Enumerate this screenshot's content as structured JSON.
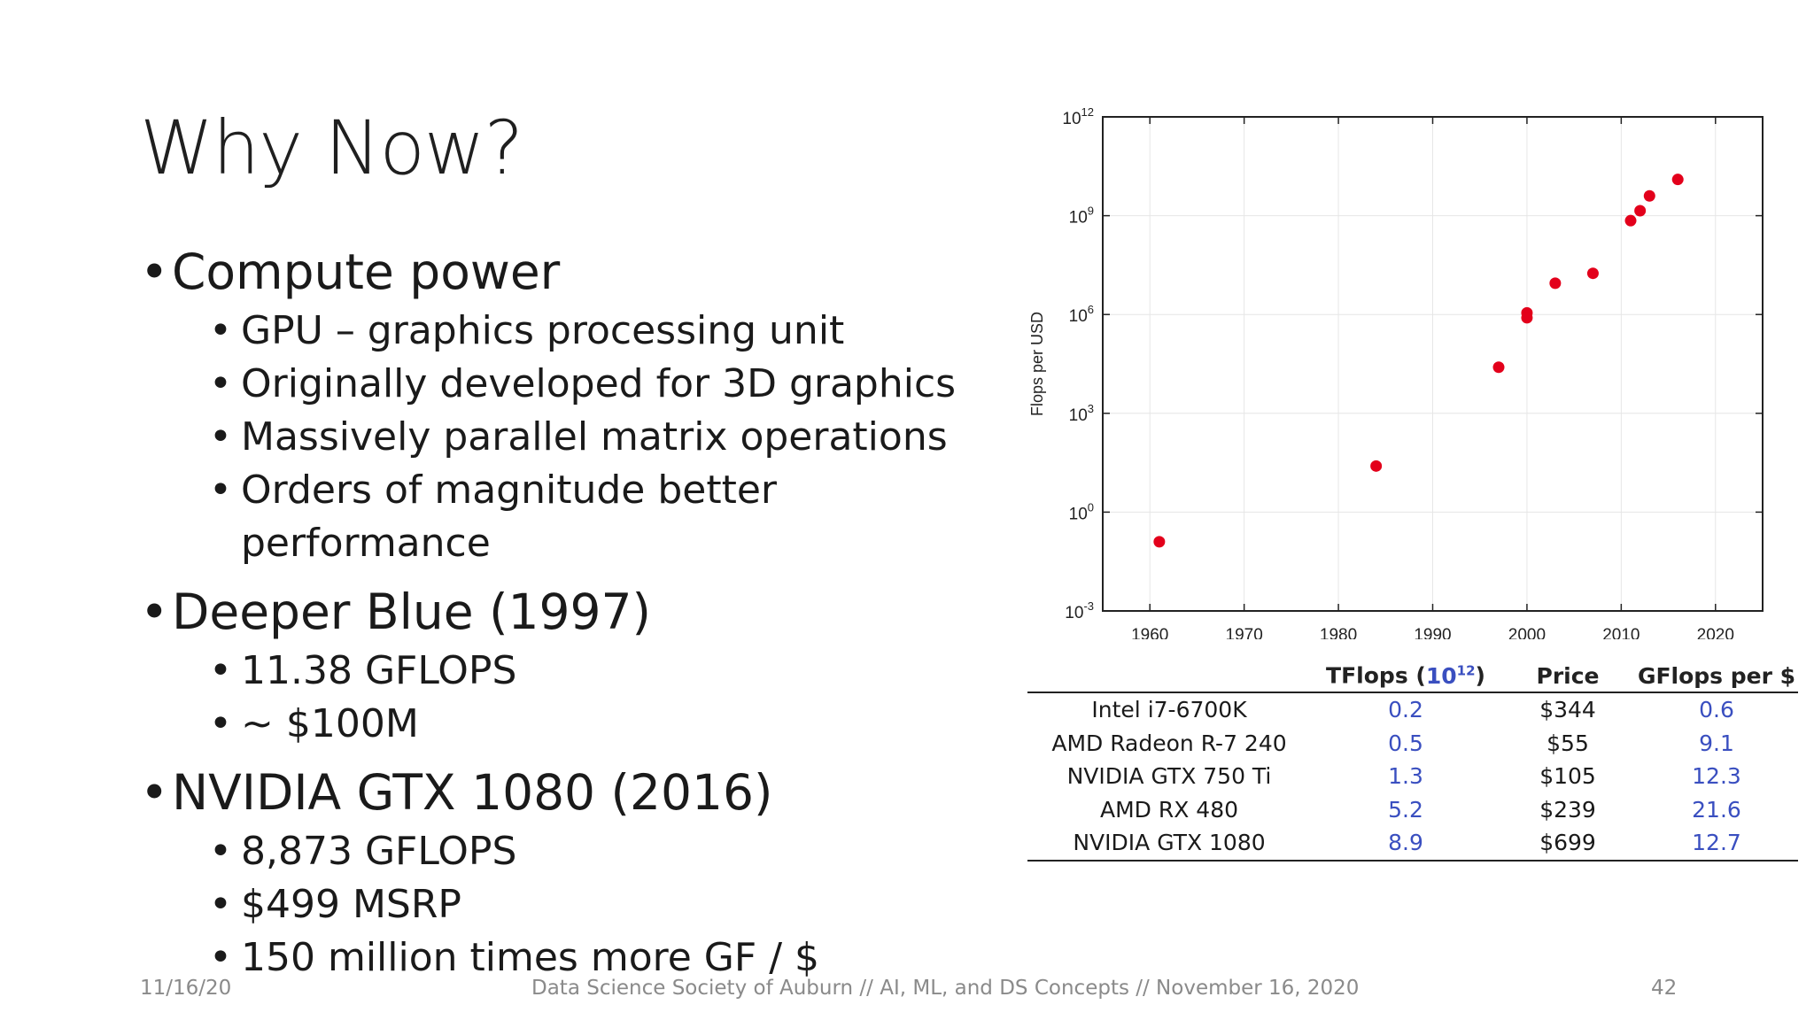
{
  "slide": {
    "title": "Why Now?",
    "bullets": [
      {
        "text": "Compute power",
        "sub": [
          "GPU – graphics processing unit",
          "Originally developed for 3D graphics",
          "Massively parallel matrix operations",
          "Orders of magnitude better performance"
        ]
      },
      {
        "text": "Deeper Blue (1997)",
        "sub": [
          "11.38 GFLOPS",
          "~ $100M"
        ]
      },
      {
        "text": "NVIDIA GTX 1080 (2016)",
        "sub": [
          "8,873 GFLOPS",
          "$499 MSRP",
          "150 million times more GF / $"
        ]
      }
    ],
    "bullet_glyph": "•"
  },
  "footer": {
    "date": "11/16/20",
    "center": "Data Science Society of Auburn // AI, ML, and DS Concepts // November 16, 2020",
    "page": "42"
  },
  "chart_data": {
    "type": "scatter",
    "ylabel": "Flops per USD",
    "xlabel": "",
    "title": "",
    "xlim": [
      1955,
      2025
    ],
    "ylog": true,
    "ylim_exp": [
      -3,
      12
    ],
    "xticks": [
      "1960",
      "1970",
      "1980",
      "1990",
      "2000",
      "2010",
      "2020"
    ],
    "yticks": [
      {
        "base": "10",
        "exp": "12",
        "value": 12
      },
      {
        "base": "10",
        "exp": "9",
        "value": 9
      },
      {
        "base": "10",
        "exp": "6",
        "value": 6
      },
      {
        "base": "10",
        "exp": "3",
        "value": 3
      },
      {
        "base": "10",
        "exp": "0",
        "value": 0
      },
      {
        "base": "10",
        "exp": "-3",
        "value": -3
      }
    ],
    "grid": true,
    "marker_color": "#e3001b",
    "points_log10": [
      {
        "x": 1961,
        "y": -0.9
      },
      {
        "x": 1984,
        "y": 1.4
      },
      {
        "x": 1997,
        "y": 4.4
      },
      {
        "x": 2000,
        "y": 6.05
      },
      {
        "x": 2000,
        "y": 5.9
      },
      {
        "x": 2003,
        "y": 6.95
      },
      {
        "x": 2007,
        "y": 7.25
      },
      {
        "x": 2011,
        "y": 8.85
      },
      {
        "x": 2012,
        "y": 9.15
      },
      {
        "x": 2013,
        "y": 9.6
      },
      {
        "x": 2016,
        "y": 10.1
      }
    ]
  },
  "table": {
    "headers": {
      "name": "",
      "tflops_label": "TFlops",
      "tflops_unit_base": "10",
      "tflops_unit_exp": "12",
      "price": "Price",
      "gflops_per_dollar": "GFlops per $"
    },
    "rows": [
      {
        "name": "Intel i7-6700K",
        "tflops": "0.2",
        "price": "$344",
        "gpd": "0.6"
      },
      {
        "name": "AMD Radeon R-7 240",
        "tflops": "0.5",
        "price": "$55",
        "gpd": "9.1"
      },
      {
        "name": "NVIDIA GTX 750 Ti",
        "tflops": "1.3",
        "price": "$105",
        "gpd": "12.3"
      },
      {
        "name": "AMD RX 480",
        "tflops": "5.2",
        "price": "$239",
        "gpd": "21.6"
      },
      {
        "name": "NVIDIA GTX 1080",
        "tflops": "8.9",
        "price": "$699",
        "gpd": "12.7"
      }
    ],
    "value_color": "#3a4fc0"
  }
}
